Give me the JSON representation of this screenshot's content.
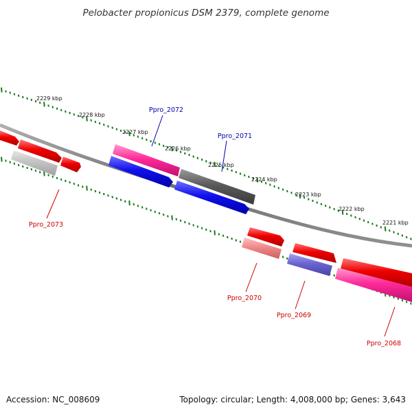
{
  "title": "Pelobacter propionicus DSM 2379, complete genome",
  "footer": {
    "accession": "Accession: NC_008609",
    "summary": "Topology: circular; Length: 4,008,000 bp; Genes: 3,643"
  },
  "ruler": {
    "labels": [
      "2229 kbp",
      "2228 kbp",
      "2227 kbp",
      "2226 kbp",
      "2225 kbp",
      "2224 kbp",
      "2223 kbp",
      "2222 kbp",
      "2221 kbp"
    ],
    "tick_color": "#1a7a1a"
  },
  "genes": [
    {
      "name": "Ppro_2073",
      "strand": "lower",
      "label_color": "#cc0000"
    },
    {
      "name": "Ppro_2072",
      "strand": "upper",
      "label_color": "#0000aa"
    },
    {
      "name": "Ppro_2071",
      "strand": "upper",
      "label_color": "#0000aa"
    },
    {
      "name": "Ppro_2070",
      "strand": "lower",
      "label_color": "#cc0000"
    },
    {
      "name": "Ppro_2069",
      "strand": "lower",
      "label_color": "#cc0000"
    },
    {
      "name": "Ppro_2068",
      "strand": "lower",
      "label_color": "#cc0000"
    }
  ],
  "colors": {
    "backbone": "#777777",
    "red": "#ee0000",
    "magenta": "#ff2a9a",
    "blue": "#1010ee",
    "dark_gray": "#5a5a5a",
    "light_gray": "#c4c4c4",
    "light_red": "#f08a8a",
    "slate_blue": "#6a64d0"
  }
}
